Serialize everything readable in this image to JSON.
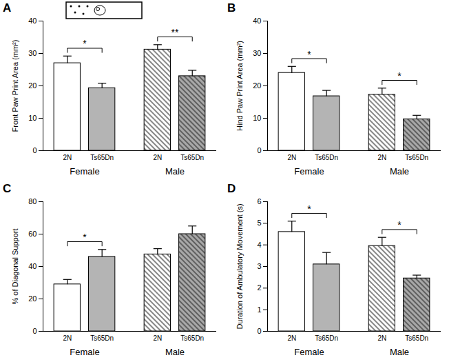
{
  "chart_data": [
    {
      "type": "bar",
      "label": "A",
      "ylabel": "Front Paw Print Area (mm²)",
      "categories": [
        "2N",
        "Ts65Dn",
        "2N",
        "Ts65Dn"
      ],
      "groups": [
        "Female",
        "Female",
        "Male",
        "Male"
      ],
      "values": [
        27,
        19.3,
        31.2,
        23
      ],
      "errors": [
        2.2,
        1.5,
        1.5,
        1.8
      ],
      "colors": [
        "#ffffff",
        "#b4b4b4",
        "#ffffff",
        "#a8a8a8"
      ],
      "ylim": [
        0,
        40
      ],
      "yticks": [
        0,
        10,
        20,
        30,
        40
      ],
      "significance": [
        {
          "between": [
            0,
            1
          ],
          "label": "*"
        },
        {
          "between": [
            2,
            3
          ],
          "label": "**"
        }
      ]
    },
    {
      "type": "bar",
      "label": "B",
      "ylabel": "Hind Paw Print Area (mm²)",
      "categories": [
        "2N",
        "Ts65Dn",
        "2N",
        "Ts65Dn"
      ],
      "groups": [
        "Female",
        "Female",
        "Male",
        "Male"
      ],
      "values": [
        24,
        16.8,
        17.3,
        9.7
      ],
      "errors": [
        2,
        1.8,
        2,
        1.2
      ],
      "colors": [
        "#ffffff",
        "#b4b4b4",
        "#ffffff",
        "#a8a8a8"
      ],
      "ylim": [
        0,
        40
      ],
      "yticks": [
        0,
        10,
        20,
        30,
        40
      ],
      "significance": [
        {
          "between": [
            0,
            1
          ],
          "label": "*"
        },
        {
          "between": [
            2,
            3
          ],
          "label": "*"
        }
      ]
    },
    {
      "type": "bar",
      "label": "C",
      "ylabel": "% of Diagonal Support",
      "categories": [
        "2N",
        "Ts65Dn",
        "2N",
        "Ts65Dn"
      ],
      "groups": [
        "Female",
        "Female",
        "Male",
        "Male"
      ],
      "values": [
        29,
        46,
        47.5,
        60
      ],
      "errors": [
        3,
        4.5,
        3.5,
        5
      ],
      "colors": [
        "#ffffff",
        "#b4b4b4",
        "#ffffff",
        "#a8a8a8"
      ],
      "ylim": [
        0,
        80
      ],
      "yticks": [
        0,
        20,
        40,
        60,
        80
      ],
      "significance": [
        {
          "between": [
            0,
            1
          ],
          "label": "*"
        }
      ]
    },
    {
      "type": "bar",
      "label": "D",
      "ylabel": "Duration of Ambulatory Movement (s)",
      "categories": [
        "2N",
        "Ts65Dn",
        "2N",
        "Ts65Dn"
      ],
      "groups": [
        "Female",
        "Female",
        "Male",
        "Male"
      ],
      "values": [
        4.6,
        3.1,
        3.95,
        2.45
      ],
      "errors": [
        0.5,
        0.55,
        0.4,
        0.15
      ],
      "colors": [
        "#ffffff",
        "#b4b4b4",
        "#ffffff",
        "#a8a8a8"
      ],
      "ylim": [
        0,
        6
      ],
      "yticks": [
        0,
        1,
        2,
        3,
        4,
        5,
        6
      ],
      "significance": [
        {
          "between": [
            0,
            1
          ],
          "label": "*"
        },
        {
          "between": [
            2,
            3
          ],
          "label": "*"
        }
      ]
    }
  ]
}
